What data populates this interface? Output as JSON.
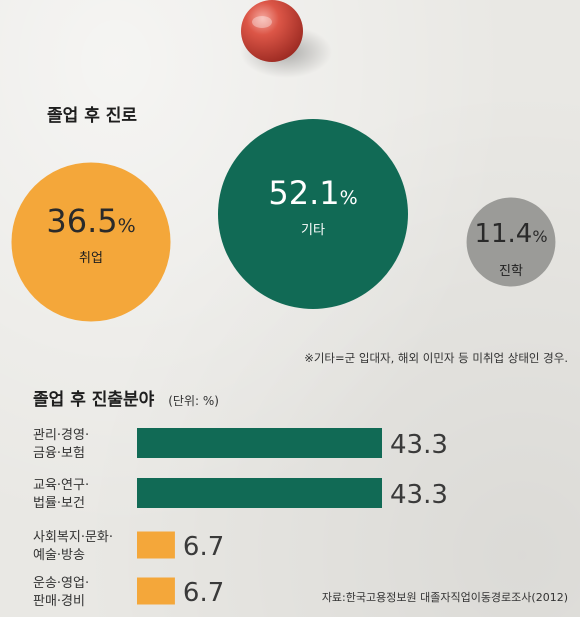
{
  "colors": {
    "orange": "#f4a73a",
    "green": "#116a55",
    "gray": "#9b9b98",
    "pin": "#d2463a"
  },
  "chart_data": [
    {
      "type": "bubble",
      "title": "졸업 후 진로",
      "categories": [
        "취업",
        "기타",
        "진학"
      ],
      "values": [
        36.5,
        52.1,
        11.4
      ],
      "unit": "%",
      "value_labels": [
        "36.5",
        "52.1",
        "11.4"
      ],
      "note": "※기타=군 입대자, 해외 이민자 등 미취업 상태인 경우."
    },
    {
      "type": "bar",
      "orientation": "horizontal",
      "title": "졸업 후 진출분야",
      "unit_label": "(단위: %)",
      "categories": [
        [
          "관리·경영·",
          "금융·보험"
        ],
        [
          "교육·연구·",
          "법률·보건"
        ],
        [
          "사회복지·문화·",
          "예술·방송"
        ],
        [
          "운송·영업·",
          "판매·경비"
        ]
      ],
      "values": [
        43.3,
        43.3,
        6.7,
        6.7
      ],
      "value_labels": [
        "43.3",
        "43.3",
        "6.7",
        "6.7"
      ],
      "source": "자료:한국고용정보원 대졸자직업이동경로조사(2012)"
    }
  ]
}
